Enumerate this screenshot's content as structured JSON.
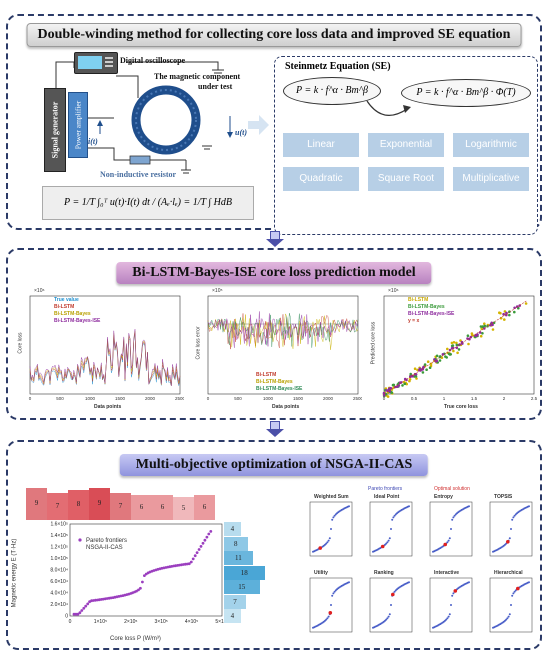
{
  "panel1": {
    "title": "Double-winding method for collecting core loss data and improved SE equation",
    "labels": {
      "oscilloscope": "Digital oscilloscope",
      "component": "The magnetic component",
      "under_test": "under test",
      "signal_generator": "Signal generator",
      "power_amplifier": "Power amplifier",
      "resistor": "Non-inductive resistor",
      "current": "i(t)",
      "voltage": "u(t)"
    },
    "formula": "P = 1/T ∫₀ᵀ u(t)·I(t) dt / (Aₑ·lₑ) = 1/T ∫ HdB",
    "se_box": {
      "title": "Steinmetz Equation (SE)",
      "eq_left": "P = k · f^α · Bm^β",
      "eq_right": "P = k · f^α · Bm^β · Φ(T)",
      "methods": [
        "Linear",
        "Exponential",
        "Logarithmic",
        "Quadratic",
        "Square Root",
        "Multiplicative"
      ]
    }
  },
  "panel2": {
    "title": "Bi-LSTM-Bayes-ISE core loss prediction model",
    "chart1": {
      "legend": [
        "True value",
        "Bi-LSTM",
        "Bi-LSTM-Bayes",
        "Bi-LSTM-Bayes-ISE"
      ],
      "ylabel": "Core loss",
      "xlabel": "Data points",
      "exp": "×10⁶",
      "xticks": [
        "0",
        "500",
        "1000",
        "1500",
        "2000",
        "2500"
      ]
    },
    "chart2": {
      "legend": [
        "Bi-LSTM",
        "Bi-LSTM-Bayes",
        "Bi-LSTM-Bayes-ISE"
      ],
      "ylabel": "Core loss error",
      "xlabel": "Data points",
      "exp": "×10⁵",
      "xticks": [
        "0",
        "500",
        "1000",
        "1500",
        "2000",
        "2500"
      ]
    },
    "chart3": {
      "legend": [
        "Bi-LSTM",
        "Bi-LSTM-Bayes",
        "Bi-LSTM-Bayes-ISE",
        "y = x"
      ],
      "ylabel": "Predicted core loss",
      "xlabel": "True core loss",
      "exp": "×10⁶",
      "xticks": [
        "0",
        "0.5",
        "1",
        "1.5",
        "2",
        "2.5"
      ]
    }
  },
  "panel3": {
    "title": "Multi-objective optimization of NSGA-II-CAS",
    "pareto": {
      "legend": [
        "Pareto frontiers",
        "NSGA-II-CAS"
      ],
      "ylabel": "Magnetic energy E (T·Hz)",
      "xlabel": "Core loss P (W/m³)",
      "yticks": [
        "0",
        "2.0×10⁴",
        "4.0×10⁴",
        "6.0×10⁴",
        "8.0×10⁴",
        "1.0×10⁵",
        "1.2×10⁵",
        "1.4×10⁵",
        "1.6×10⁵"
      ],
      "xticks": [
        "0",
        "1×10⁵",
        "2×10⁵",
        "3×10⁵",
        "4×10⁵",
        "5×10⁵"
      ],
      "top_hist": [
        "9",
        "7",
        "8",
        "9",
        "7",
        "6",
        "6",
        "5",
        "6"
      ],
      "side_hist": [
        "4",
        "8",
        "11",
        "18",
        "15",
        "7",
        "4"
      ]
    },
    "subplots": {
      "legend": [
        "Pareto frontiers",
        "Optimal solution"
      ],
      "titles": [
        "Weighted Sum",
        "Ideal Point",
        "Entropy",
        "TOPSIS",
        "Utility",
        "Ranking",
        "Interactive",
        "Hierarchical"
      ]
    }
  }
}
